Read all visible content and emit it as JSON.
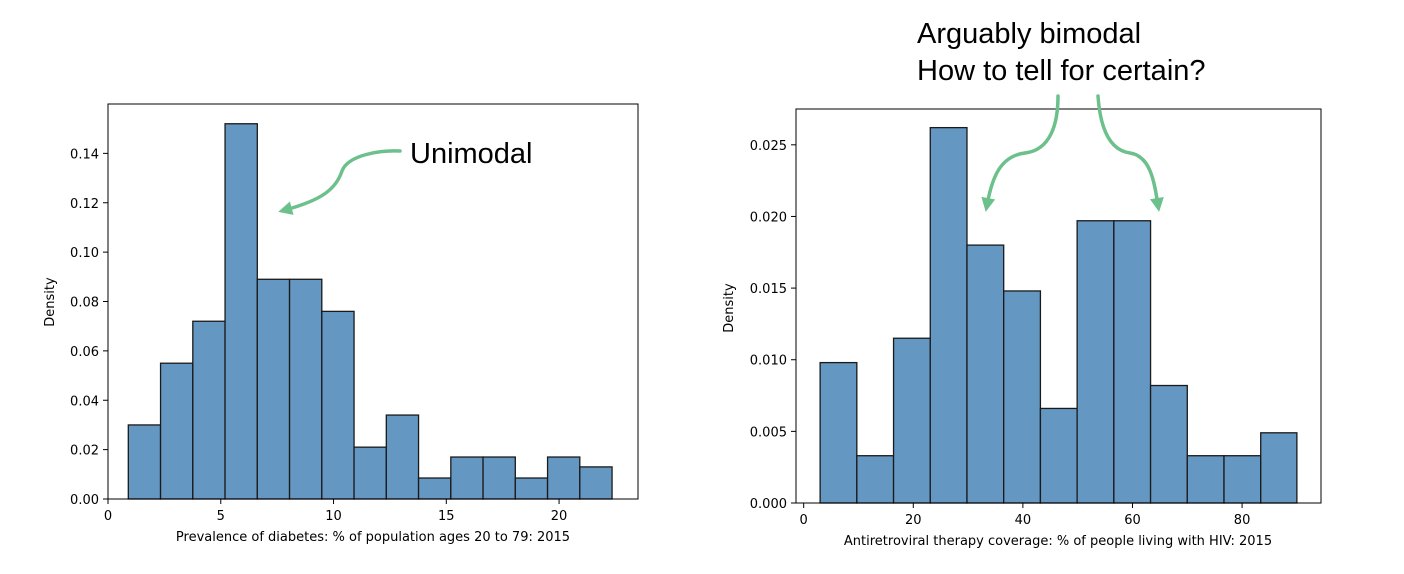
{
  "colors": {
    "bar_fill": "#6497c2",
    "bar_edge": "#1a1a1a",
    "arrow": "#6cc08b"
  },
  "chart_data": [
    {
      "type": "bar",
      "subtype": "histogram",
      "title": "",
      "xlabel": "Prevalence of diabetes: % of population ages 20 to 79: 2015",
      "ylabel": "Density",
      "xlim": [
        0,
        23.5
      ],
      "ylim": [
        0,
        0.16
      ],
      "xticks": [
        0,
        5,
        10,
        15,
        20
      ],
      "yticks": [
        0.0,
        0.02,
        0.04,
        0.06,
        0.08,
        0.1,
        0.12,
        0.14
      ],
      "ytick_labels": [
        "0.00",
        "0.02",
        "0.04",
        "0.06",
        "0.08",
        "0.10",
        "0.12",
        "0.14"
      ],
      "bin_edges": [
        0.9,
        2.33,
        3.76,
        5.19,
        6.62,
        8.05,
        9.48,
        10.91,
        12.34,
        13.77,
        15.2,
        16.63,
        18.06,
        19.49,
        20.92,
        22.35
      ],
      "values": [
        0.03,
        0.055,
        0.072,
        0.152,
        0.089,
        0.089,
        0.076,
        0.021,
        0.034,
        0.0085,
        0.017,
        0.017,
        0.0085,
        0.017,
        0.013
      ],
      "grid": false,
      "annotations": [
        {
          "text": "Unimodal"
        }
      ]
    },
    {
      "type": "bar",
      "subtype": "histogram",
      "title": "",
      "xlabel": "Antiretroviral therapy coverage: % of people living with HIV: 2015",
      "ylabel": "Density",
      "xlim": [
        -1.4,
        94.4
      ],
      "ylim": [
        0,
        0.0275
      ],
      "xticks": [
        0,
        20,
        40,
        60,
        80
      ],
      "yticks": [
        0.0,
        0.005,
        0.01,
        0.015,
        0.02,
        0.025
      ],
      "ytick_labels": [
        "0.000",
        "0.005",
        "0.010",
        "0.015",
        "0.020",
        "0.025"
      ],
      "bin_edges": [
        3,
        9.7,
        16.4,
        23.1,
        29.8,
        36.5,
        43.2,
        49.9,
        56.6,
        63.3,
        70,
        76.7,
        83.4,
        90
      ],
      "values": [
        0.0098,
        0.0033,
        0.0115,
        0.0262,
        0.018,
        0.0148,
        0.0066,
        0.0197,
        0.0197,
        0.0082,
        0.0033,
        0.0033,
        0.0049
      ],
      "grid": false,
      "annotations": [
        {
          "text": "Arguably bimodal"
        },
        {
          "text": "How to tell for certain?"
        }
      ]
    }
  ]
}
